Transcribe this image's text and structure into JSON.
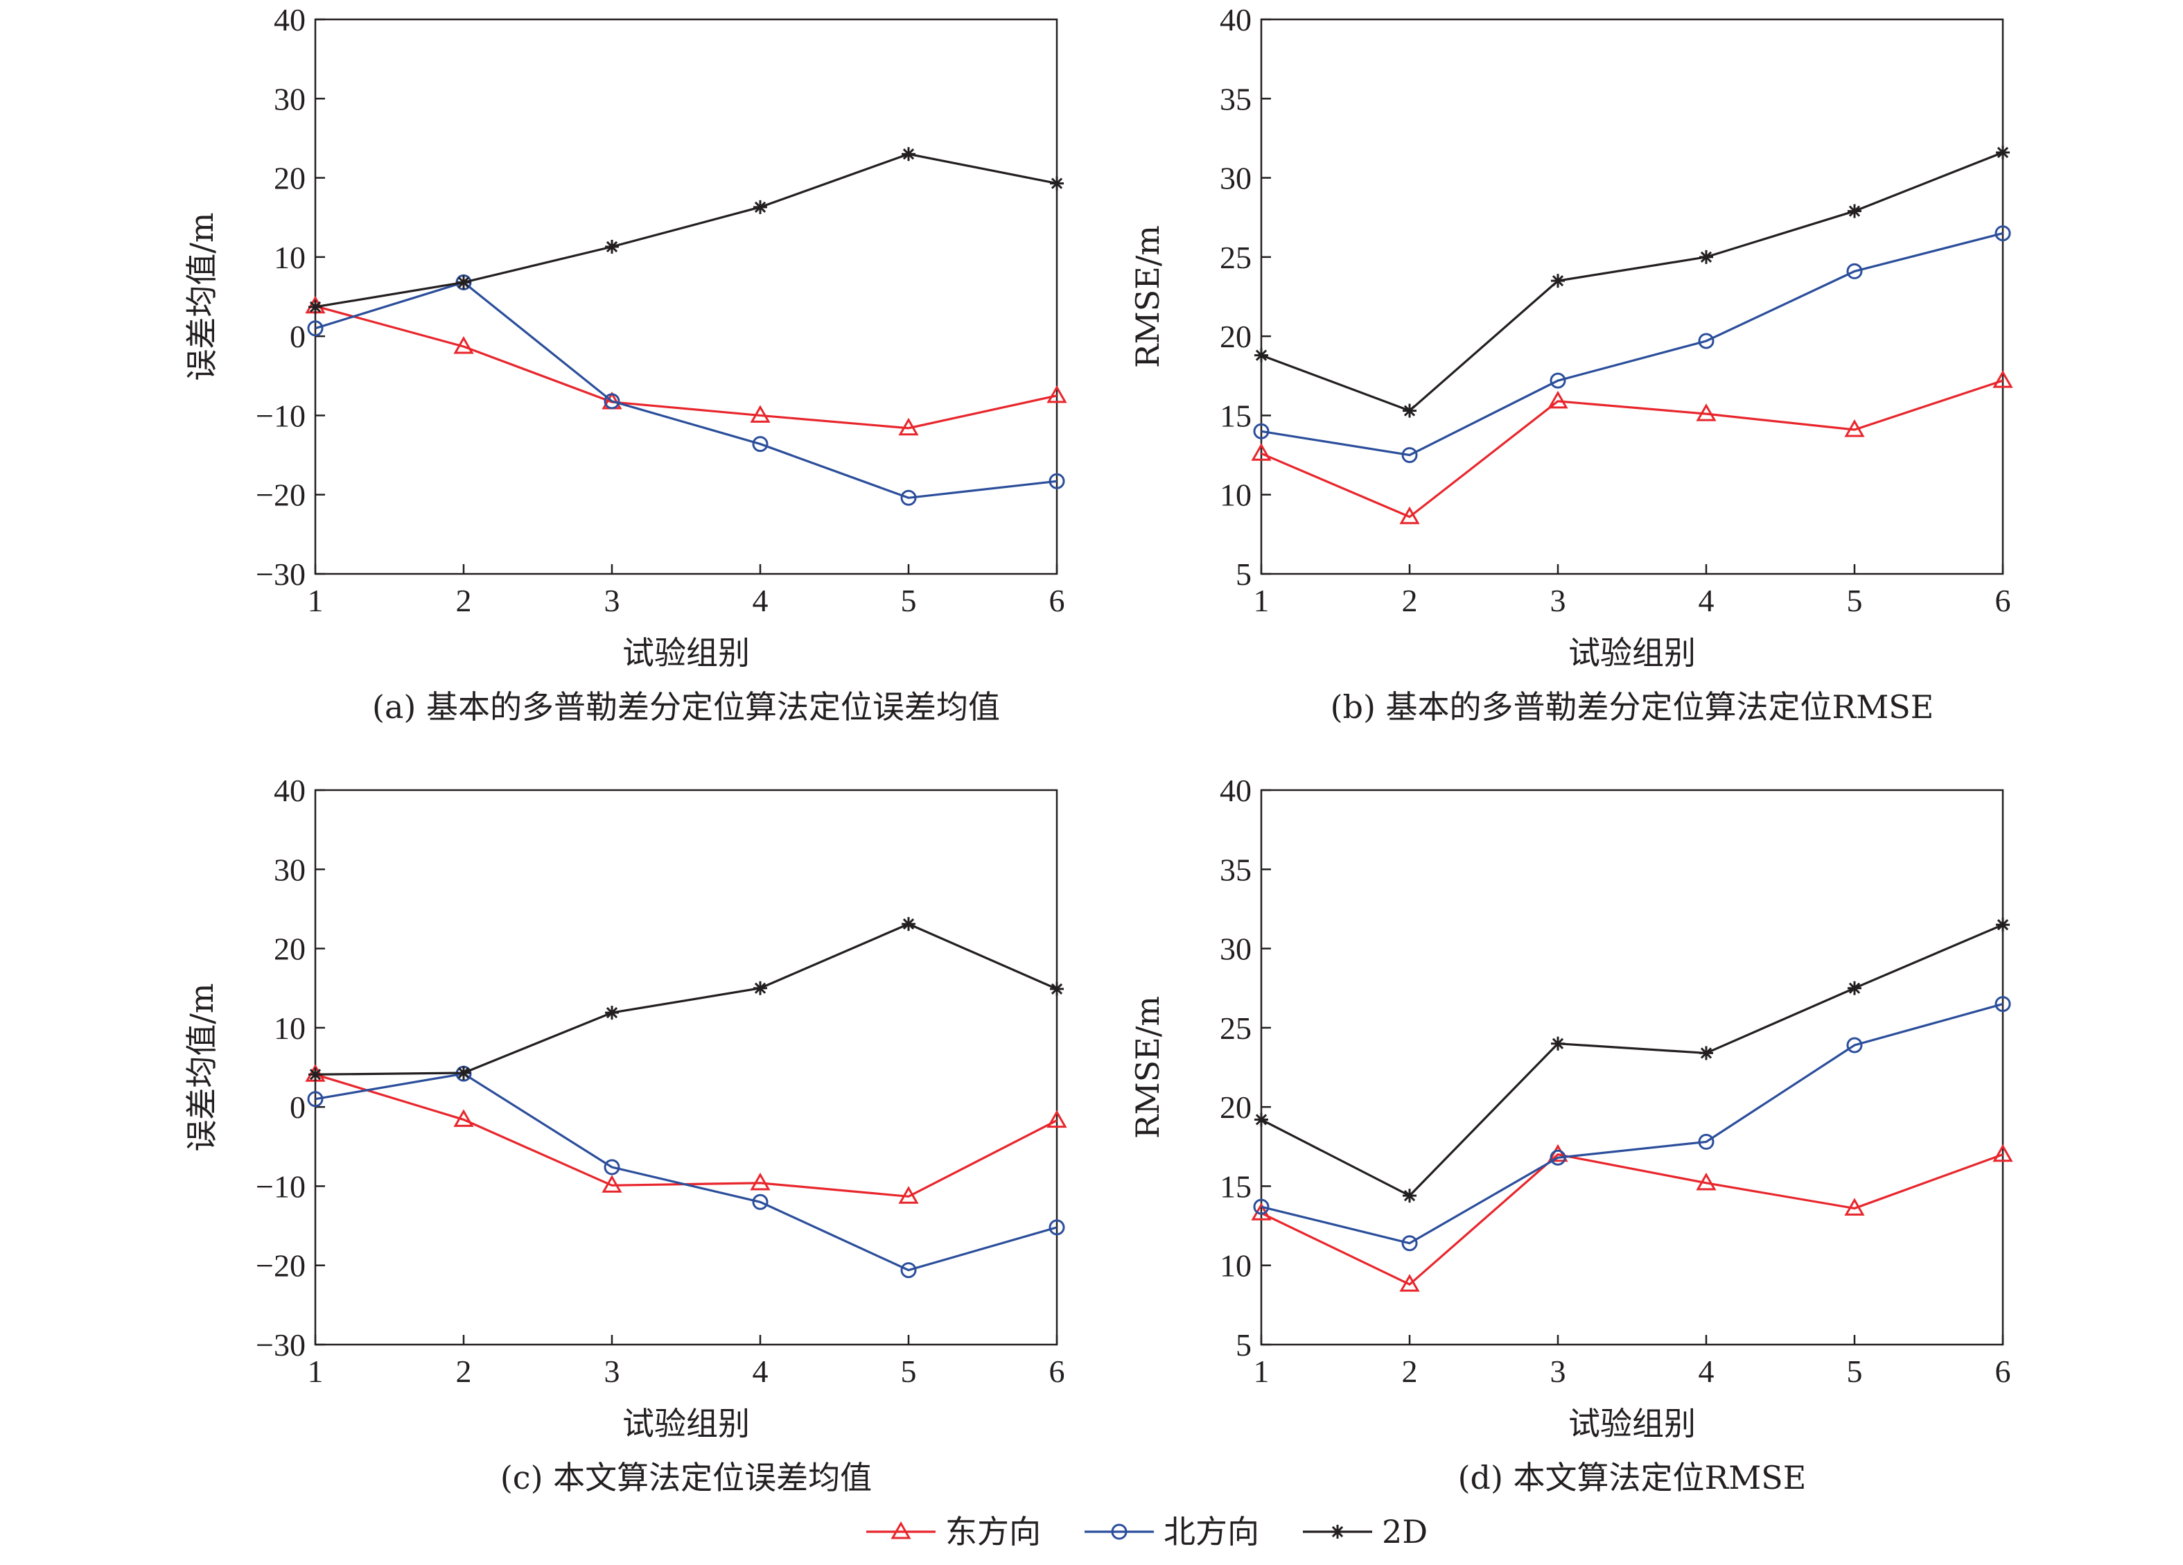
{
  "legend": [
    {
      "name": "东方向",
      "color": "#e8262c",
      "marker": "triangle"
    },
    {
      "name": "北方向",
      "color": "#2b4e9b",
      "marker": "circle"
    },
    {
      "name": "2D",
      "color": "#231f20",
      "marker": "asterisk"
    }
  ],
  "chart_data": [
    {
      "type": "line",
      "caption": "(a) 基本的多普勒差分定位算法定位误差均值",
      "xlabel": "试验组别",
      "ylabel": "误差均值/m",
      "x": [
        1,
        2,
        3,
        4,
        5,
        6
      ],
      "xlim": [
        1,
        6
      ],
      "ylim": [
        -30,
        40
      ],
      "yticks": [
        -30,
        -20,
        -10,
        0,
        10,
        20,
        30,
        40
      ],
      "ytick_labels": [
        "−30",
        "−20",
        "−10",
        "0",
        "10",
        "20",
        "30",
        "40"
      ],
      "series": [
        {
          "name": "东方向",
          "values": [
            3.8,
            -1.3,
            -8.3,
            -10.0,
            -11.6,
            -7.5
          ]
        },
        {
          "name": "北方向",
          "values": [
            1.0,
            6.8,
            -8.2,
            -13.6,
            -20.4,
            -18.3
          ]
        },
        {
          "name": "2D",
          "values": [
            3.7,
            6.8,
            11.3,
            16.3,
            23.0,
            19.3
          ]
        }
      ]
    },
    {
      "type": "line",
      "caption": "(b) 基本的多普勒差分定位算法定位RMSE",
      "xlabel": "试验组别",
      "ylabel": "RMSE/m",
      "x": [
        1,
        2,
        3,
        4,
        5,
        6
      ],
      "xlim": [
        1,
        6
      ],
      "ylim": [
        5,
        40
      ],
      "yticks": [
        5,
        10,
        15,
        20,
        25,
        30,
        35,
        40
      ],
      "ytick_labels": [
        "5",
        "10",
        "15",
        "20",
        "25",
        "30",
        "35",
        "40"
      ],
      "series": [
        {
          "name": "东方向",
          "values": [
            12.6,
            8.6,
            15.9,
            15.1,
            14.1,
            17.2
          ]
        },
        {
          "name": "北方向",
          "values": [
            14.0,
            12.5,
            17.2,
            19.7,
            24.1,
            26.5
          ]
        },
        {
          "name": "2D",
          "values": [
            18.8,
            15.3,
            23.5,
            25.0,
            27.9,
            31.6
          ]
        }
      ]
    },
    {
      "type": "line",
      "caption": "(c) 本文算法定位误差均值",
      "xlabel": "试验组别",
      "ylabel": "误差均值/m",
      "x": [
        1,
        2,
        3,
        4,
        5,
        6
      ],
      "xlim": [
        1,
        6
      ],
      "ylim": [
        -30,
        40
      ],
      "yticks": [
        -30,
        -20,
        -10,
        0,
        10,
        20,
        30,
        40
      ],
      "ytick_labels": [
        "−30",
        "−20",
        "−10",
        "0",
        "10",
        "20",
        "30",
        "40"
      ],
      "series": [
        {
          "name": "东方向",
          "values": [
            4.1,
            -1.6,
            -9.9,
            -9.6,
            -11.3,
            -1.7
          ]
        },
        {
          "name": "北方向",
          "values": [
            1.0,
            4.2,
            -7.6,
            -12.0,
            -20.6,
            -15.2
          ]
        },
        {
          "name": "2D",
          "values": [
            4.1,
            4.3,
            11.9,
            15.0,
            23.1,
            14.9
          ]
        }
      ]
    },
    {
      "type": "line",
      "caption": "(d) 本文算法定位RMSE",
      "xlabel": "试验组别",
      "ylabel": "RMSE/m",
      "x": [
        1,
        2,
        3,
        4,
        5,
        6
      ],
      "xlim": [
        1,
        6
      ],
      "ylim": [
        5,
        40
      ],
      "yticks": [
        5,
        10,
        15,
        20,
        25,
        30,
        35,
        40
      ],
      "ytick_labels": [
        "5",
        "10",
        "15",
        "20",
        "25",
        "30",
        "35",
        "40"
      ],
      "series": [
        {
          "name": "东方向",
          "values": [
            13.3,
            8.8,
            17.0,
            15.2,
            13.6,
            17.0
          ]
        },
        {
          "name": "北方向",
          "values": [
            13.7,
            11.4,
            16.8,
            17.8,
            23.9,
            26.5
          ]
        },
        {
          "name": "2D",
          "values": [
            19.2,
            14.4,
            24.0,
            23.4,
            27.5,
            31.5
          ]
        }
      ]
    }
  ]
}
